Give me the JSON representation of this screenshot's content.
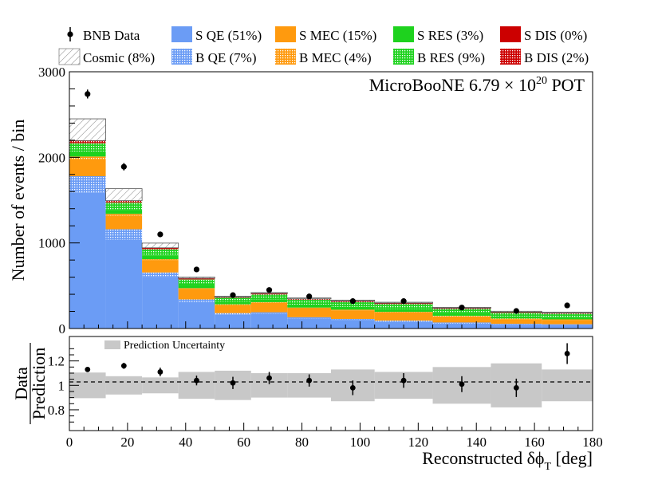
{
  "legend": [
    {
      "key": "data",
      "label": "BNB Data"
    },
    {
      "key": "sqe",
      "label": "S QE (51%)"
    },
    {
      "key": "smec",
      "label": "S MEC (15%)"
    },
    {
      "key": "sres",
      "label": "S RES (3%)"
    },
    {
      "key": "sdis",
      "label": "S DIS (0%)"
    },
    {
      "key": "cosmic",
      "label": "Cosmic (8%)"
    },
    {
      "key": "bqe",
      "label": "B QE (7%)"
    },
    {
      "key": "bmec",
      "label": "B MEC (4%)"
    },
    {
      "key": "bres",
      "label": "B RES (9%)"
    },
    {
      "key": "bdis",
      "label": "B DIS (2%)"
    }
  ],
  "colors": {
    "qe": "#6b9cf5",
    "mec": "#ff9a0e",
    "res": "#1ed21e",
    "dis": "#cc0000",
    "cosmic": "#ffffff",
    "band": "#c8c8c8"
  },
  "annotation": {
    "experiment": "MicroBooNE",
    "exposure": "6.79",
    "base": "10",
    "exp": "20",
    "unit": "POT",
    "times": "×"
  },
  "ratio_legend": "Prediction Uncertainty",
  "chart_data": {
    "type": "histogram",
    "xlabel": "Reconstructed δϕ",
    "xlabel_sub": "T",
    "xlabel_unit": "[deg]",
    "ylabel": "Number of events / bin",
    "ratio_ylabel_num": "Data",
    "ratio_ylabel_den": "Prediction",
    "xlim": [
      0,
      180
    ],
    "ylim": [
      0,
      3000
    ],
    "ratio_ylim": [
      0.63,
      1.4
    ],
    "x_ticks": [
      0,
      20,
      40,
      60,
      80,
      100,
      120,
      140,
      160,
      180
    ],
    "y_ticks": [
      0,
      1000,
      2000,
      3000
    ],
    "ratio_ticks": [
      0.8,
      1,
      1.2
    ],
    "ratio_tick_labels": [
      "0.8",
      "1",
      "1.2"
    ],
    "bin_edges": [
      0,
      12.5,
      25,
      37.5,
      50,
      62.5,
      75,
      90,
      105,
      125,
      145,
      162.5,
      180
    ],
    "stack_order": [
      "sqe",
      "bqe",
      "smec",
      "bmec",
      "sres",
      "bres",
      "sdis",
      "bdis",
      "cosmic"
    ],
    "series": [
      {
        "key": "sqe",
        "name": "S QE",
        "values": [
          1590,
          1040,
          600,
          310,
          165,
          175,
          120,
          100,
          80,
          60,
          45,
          40
        ]
      },
      {
        "key": "bqe",
        "name": "B QE",
        "values": [
          190,
          120,
          55,
          30,
          15,
          15,
          12,
          12,
          12,
          11,
          10,
          10
        ]
      },
      {
        "key": "smec",
        "name": "S MEC",
        "values": [
          200,
          160,
          140,
          120,
          95,
          110,
          105,
          100,
          95,
          70,
          55,
          50
        ]
      },
      {
        "key": "bmec",
        "name": "B MEC",
        "values": [
          30,
          20,
          15,
          12,
          8,
          8,
          8,
          8,
          8,
          7,
          7,
          7
        ]
      },
      {
        "key": "sres",
        "name": "S RES",
        "values": [
          60,
          45,
          45,
          40,
          30,
          35,
          35,
          35,
          35,
          30,
          25,
          25
        ]
      },
      {
        "key": "bres",
        "name": "B RES",
        "values": [
          95,
          85,
          70,
          60,
          45,
          55,
          55,
          55,
          55,
          50,
          40,
          40
        ]
      },
      {
        "key": "sdis",
        "name": "S DIS",
        "values": [
          5,
          4,
          3,
          3,
          2,
          2,
          2,
          2,
          2,
          2,
          2,
          2
        ]
      },
      {
        "key": "bdis",
        "name": "B DIS",
        "values": [
          25,
          20,
          15,
          12,
          8,
          10,
          10,
          10,
          10,
          9,
          8,
          8
        ]
      },
      {
        "key": "cosmic",
        "name": "Cosmic",
        "values": [
          255,
          140,
          55,
          15,
          10,
          10,
          10,
          10,
          10,
          9,
          10,
          10
        ]
      }
    ],
    "data_points": {
      "x": [
        6.25,
        18.75,
        31.25,
        43.75,
        56.25,
        68.75,
        82.5,
        97.5,
        115,
        135,
        153.75,
        171.25
      ],
      "y": [
        2740,
        1890,
        1100,
        690,
        390,
        450,
        375,
        320,
        320,
        245,
        205,
        270
      ],
      "err": [
        52,
        43,
        33,
        26,
        20,
        21,
        19,
        18,
        18,
        16,
        14,
        16
      ]
    },
    "ratio": {
      "values": [
        1.13,
        1.16,
        1.11,
        1.04,
        1.02,
        1.06,
        1.04,
        0.98,
        1.04,
        1.01,
        0.98,
        1.26
      ],
      "errors": [
        0.02,
        0.025,
        0.035,
        0.04,
        0.05,
        0.05,
        0.05,
        0.06,
        0.06,
        0.065,
        0.075,
        0.085
      ],
      "band": [
        0.105,
        0.075,
        0.065,
        0.11,
        0.12,
        0.1,
        0.1,
        0.13,
        0.11,
        0.15,
        0.18,
        0.13
      ]
    }
  }
}
